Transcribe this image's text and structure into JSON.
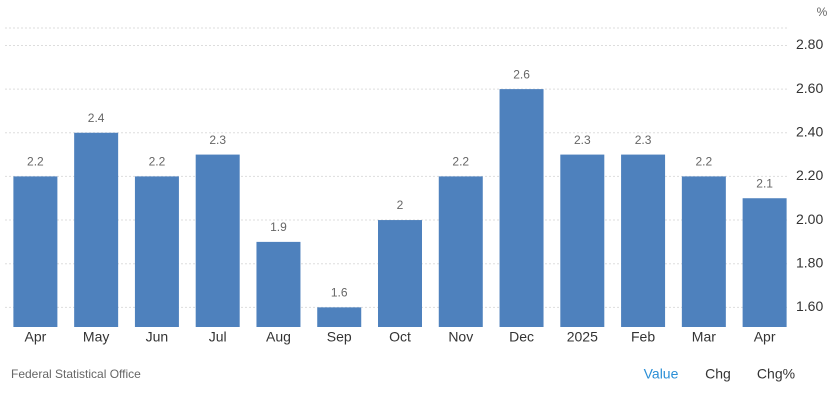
{
  "chart_data": {
    "type": "bar",
    "unit": "%",
    "categories": [
      "Apr",
      "May",
      "Jun",
      "Jul",
      "Aug",
      "Sep",
      "Oct",
      "Nov",
      "Dec",
      "2025",
      "Feb",
      "Mar",
      "Apr"
    ],
    "values": [
      2.2,
      2.4,
      2.2,
      2.3,
      1.9,
      1.6,
      2,
      2.2,
      2.6,
      2.3,
      2.3,
      2.2,
      2.1
    ],
    "color": "#4e81bd",
    "ylim": [
      1.51,
      2.88
    ],
    "yticks": [
      {
        "value": 1.6,
        "label": "1.60"
      },
      {
        "value": 1.8,
        "label": "1.80"
      },
      {
        "value": 2.0,
        "label": "2.00"
      },
      {
        "value": 2.2,
        "label": "2.20"
      },
      {
        "value": 2.4,
        "label": "2.40"
      },
      {
        "value": 2.6,
        "label": "2.60"
      },
      {
        "value": 2.8,
        "label": "2.80"
      }
    ],
    "grid": true
  },
  "footer": {
    "source": "Federal Statistical Office",
    "tabs": [
      "Value",
      "Chg",
      "Chg%"
    ]
  }
}
